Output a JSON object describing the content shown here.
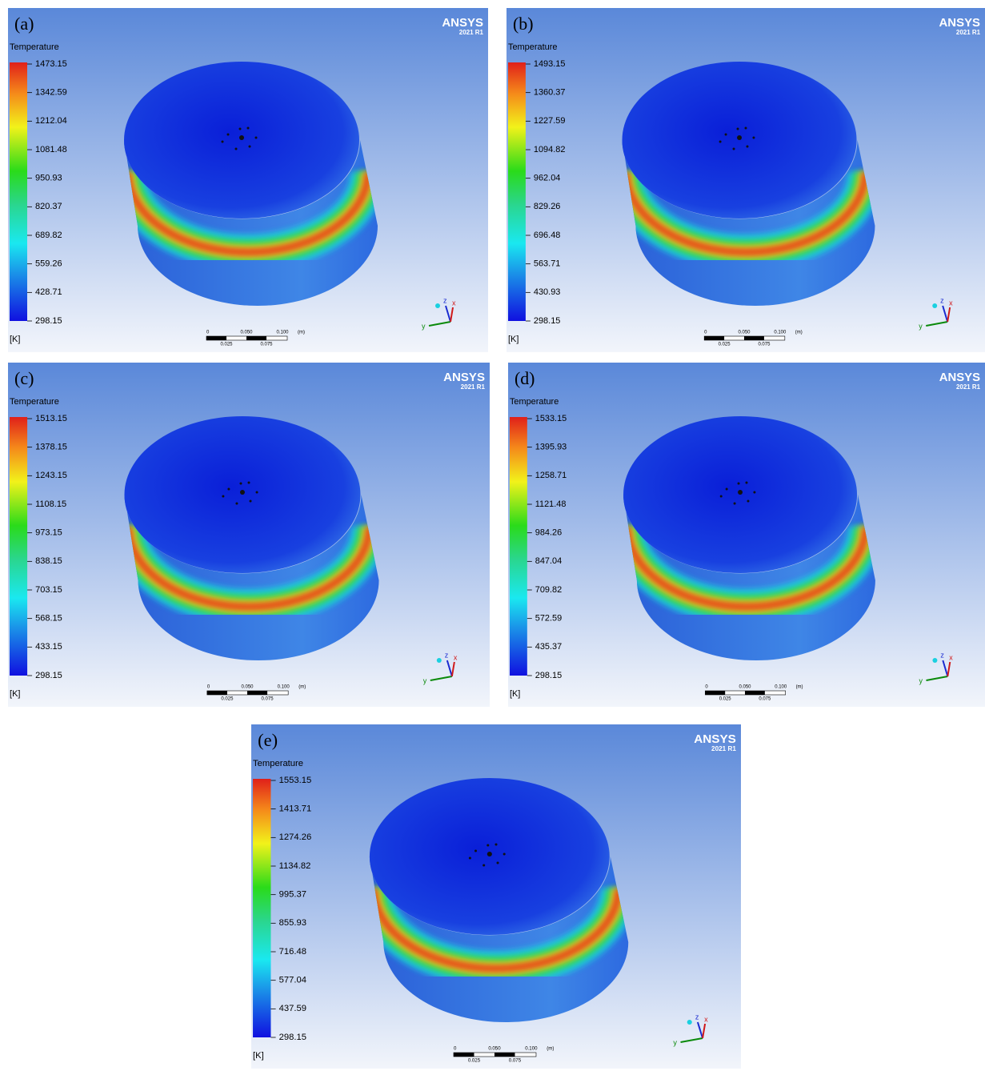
{
  "panels": [
    {
      "label": "(a)",
      "brand": "ANSYS",
      "version": "2021 R1",
      "legend_title": "Temperature",
      "legend_ticks": [
        "1473.15",
        "1342.59",
        "1212.04",
        "1081.48",
        "950.93",
        "820.37",
        "689.82",
        "559.26",
        "428.71",
        "298.15"
      ],
      "unit": "[K]",
      "scale_top": [
        "0",
        "0.050",
        "0.100",
        "(m)"
      ],
      "scale_bottom": [
        "0.025",
        "0.075"
      ],
      "triad": [
        "z",
        "x",
        "y"
      ]
    },
    {
      "label": "(b)",
      "brand": "ANSYS",
      "version": "2021 R1",
      "legend_title": "Temperature",
      "legend_ticks": [
        "1493.15",
        "1360.37",
        "1227.59",
        "1094.82",
        "962.04",
        "829.26",
        "696.48",
        "563.71",
        "430.93",
        "298.15"
      ],
      "unit": "[K]",
      "scale_top": [
        "0",
        "0.050",
        "0.100",
        "(m)"
      ],
      "scale_bottom": [
        "0.025",
        "0.075"
      ],
      "triad": [
        "z",
        "x",
        "y"
      ]
    },
    {
      "label": "(c)",
      "brand": "ANSYS",
      "version": "2021 R1",
      "legend_title": "Temperature",
      "legend_ticks": [
        "1513.15",
        "1378.15",
        "1243.15",
        "1108.15",
        "973.15",
        "838.15",
        "703.15",
        "568.15",
        "433.15",
        "298.15"
      ],
      "unit": "[K]",
      "scale_top": [
        "0",
        "0.050",
        "0.100",
        "(m)"
      ],
      "scale_bottom": [
        "0.025",
        "0.075"
      ],
      "triad": [
        "z",
        "x",
        "y"
      ]
    },
    {
      "label": "(d)",
      "brand": "ANSYS",
      "version": "2021 R1",
      "legend_title": "Temperature",
      "legend_ticks": [
        "1533.15",
        "1395.93",
        "1258.71",
        "1121.48",
        "984.26",
        "847.04",
        "709.82",
        "572.59",
        "435.37",
        "298.15"
      ],
      "unit": "[K]",
      "scale_top": [
        "0",
        "0.050",
        "0.100",
        "(m)"
      ],
      "scale_bottom": [
        "0.025",
        "0.075"
      ],
      "triad": [
        "z",
        "x",
        "y"
      ]
    },
    {
      "label": "(e)",
      "brand": "ANSYS",
      "version": "2021 R1",
      "legend_title": "Temperature",
      "legend_ticks": [
        "1553.15",
        "1413.71",
        "1274.26",
        "1134.82",
        "995.37",
        "855.93",
        "716.48",
        "577.04",
        "437.59",
        "298.15"
      ],
      "unit": "[K]",
      "scale_top": [
        "0",
        "0.050",
        "0.100",
        "(m)"
      ],
      "scale_bottom": [
        "0.025",
        "0.075"
      ],
      "triad": [
        "z",
        "x",
        "y"
      ]
    }
  ]
}
